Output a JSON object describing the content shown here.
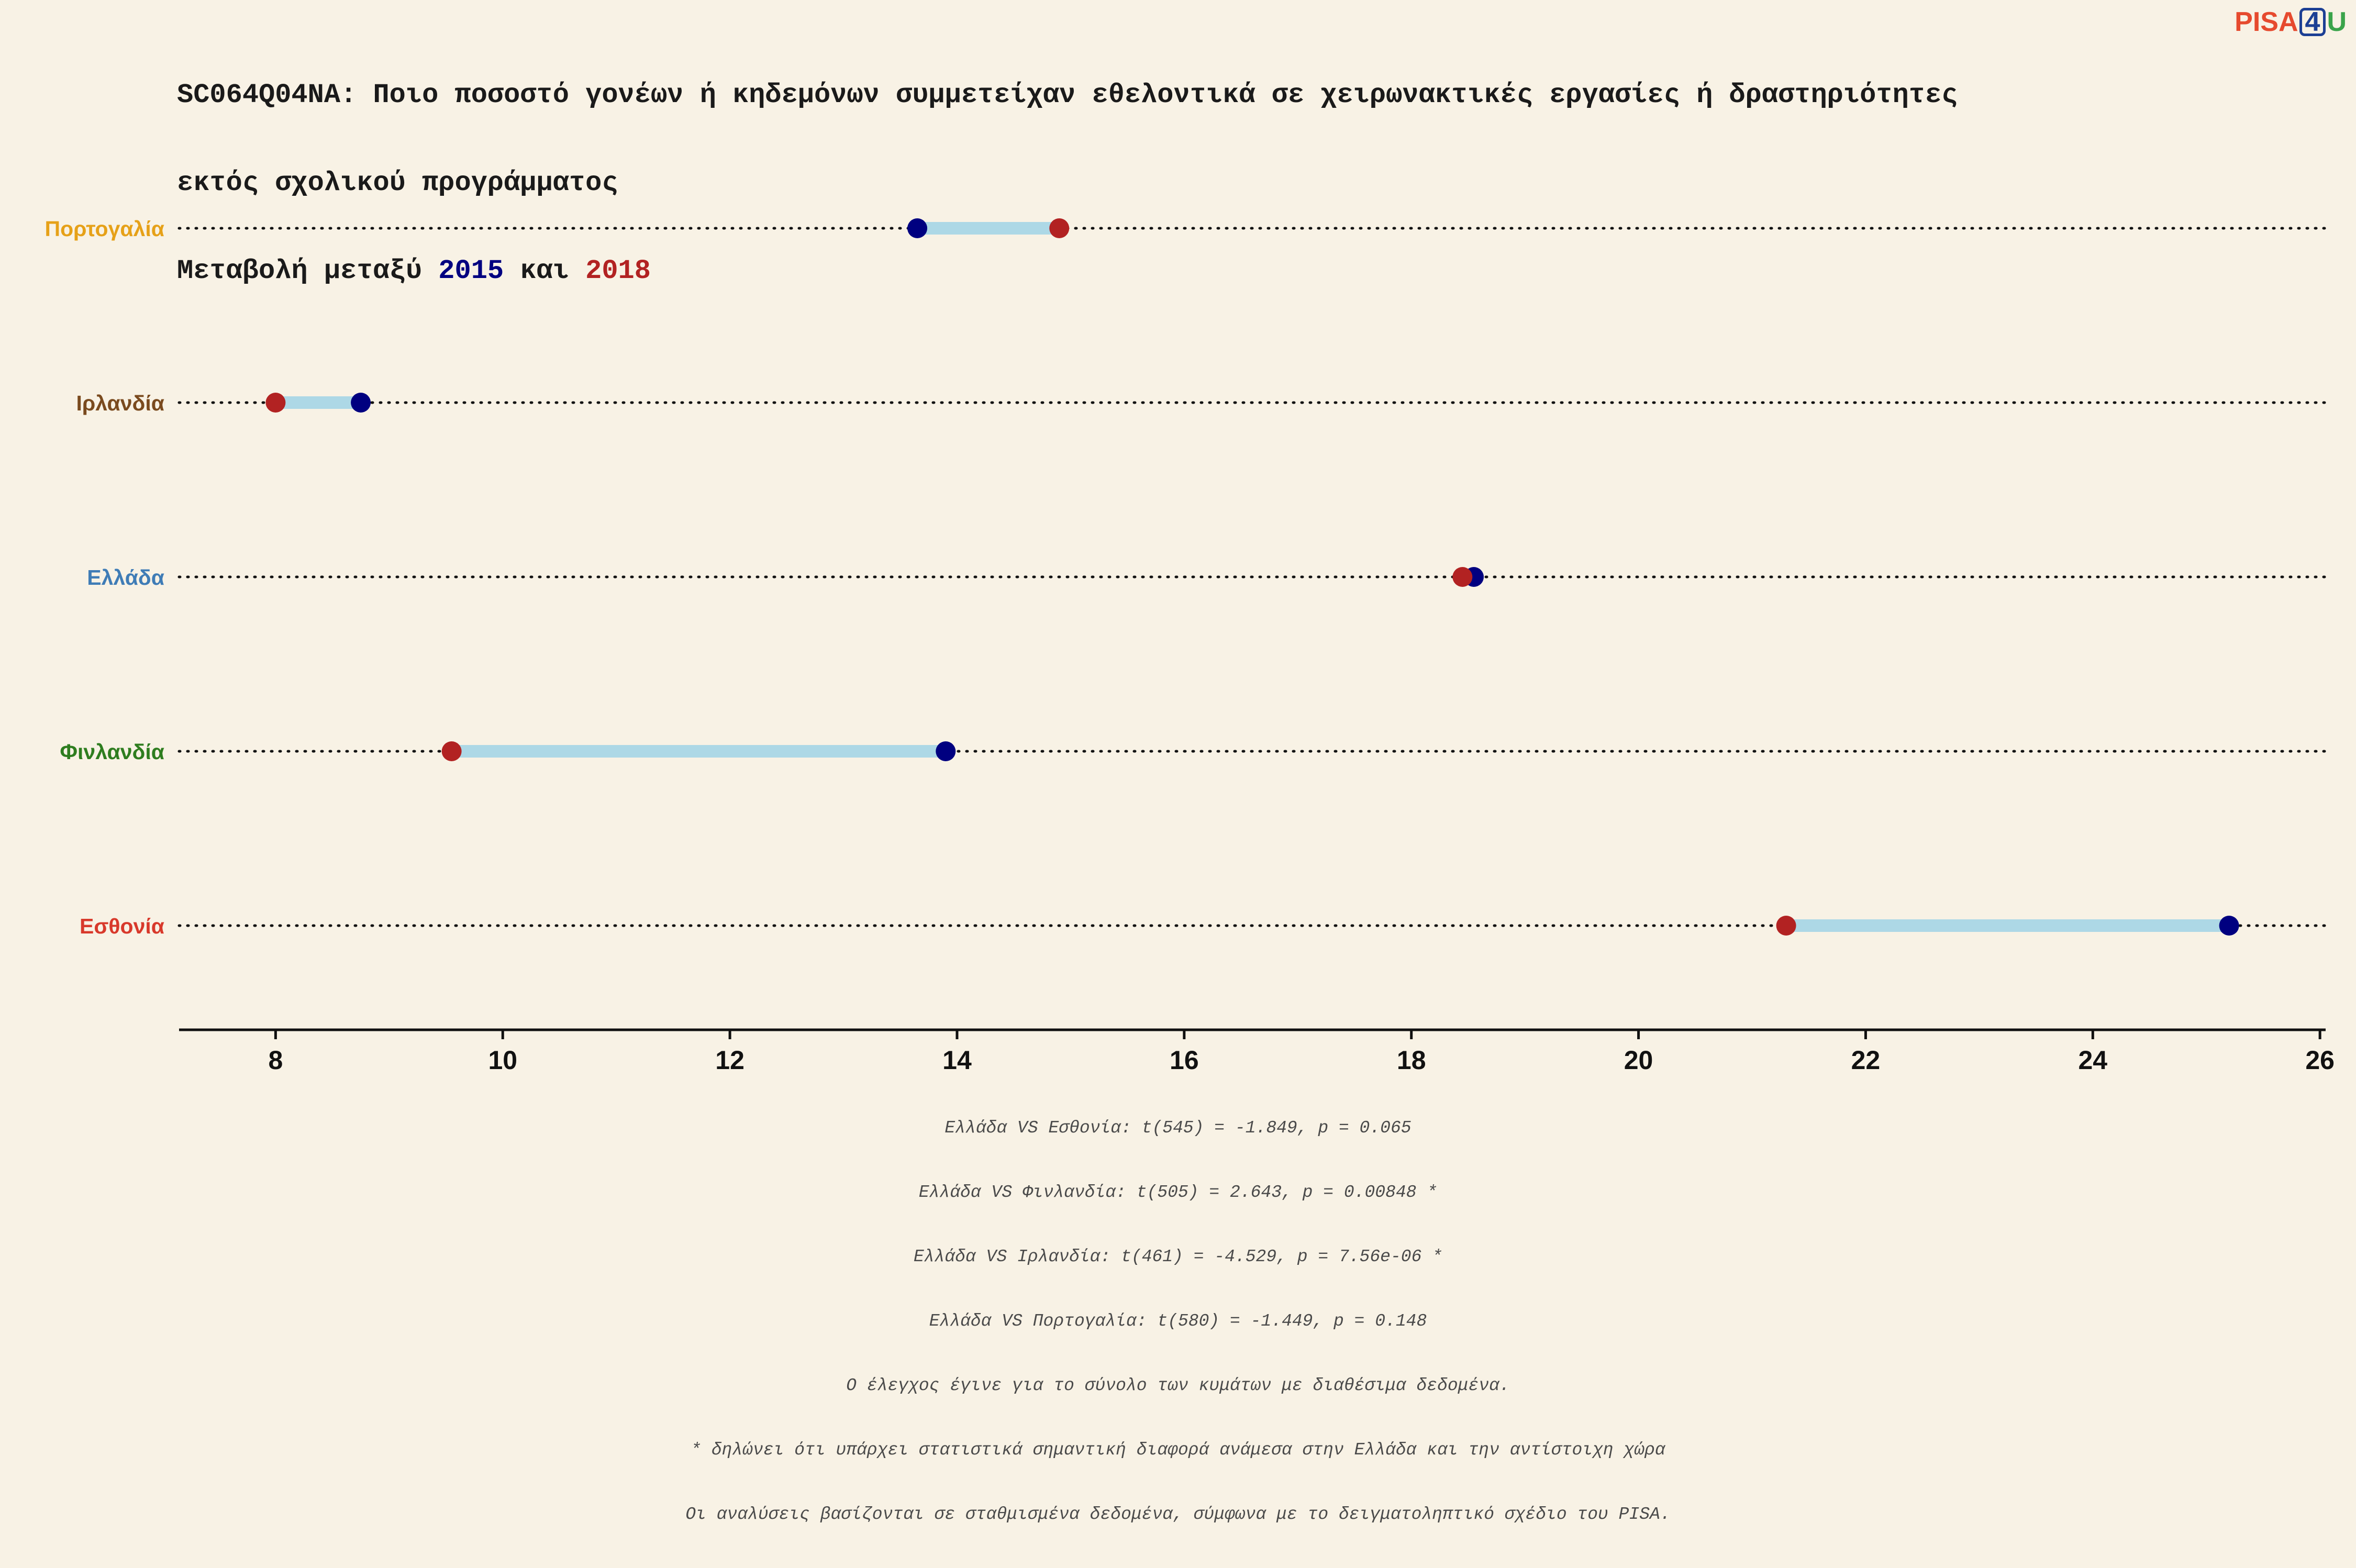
{
  "header": {
    "title_line1": "SC064Q04NA: Ποιο ποσοστό γονέων ή κηδεμόνων συμμετείχαν εθελοντικά σε χειρωνακτικές εργασίες ή δραστηριότητες",
    "title_line2": "εκτός σχολικού προγράμματος",
    "subtitle_prefix": "Μεταβολή μεταξύ ",
    "subtitle_year1": "2015",
    "subtitle_and": " και ",
    "subtitle_year2": "2018"
  },
  "logo": {
    "part1": "PISA",
    "part2": "4",
    "part3": "U"
  },
  "colors": {
    "year_2015": "#000080",
    "year_2018": "#b22222",
    "connector": "#add8e6",
    "background": "#f8f2e5",
    "logo_pisa": "#e64a2e",
    "logo_4": "#1c3f94",
    "logo_u": "#3aa34a"
  },
  "chart_data": {
    "type": "dumbbell",
    "xlim": [
      7.15,
      26.05
    ],
    "x_ticks": [
      8,
      10,
      12,
      14,
      16,
      18,
      20,
      22,
      24,
      26
    ],
    "grid": false,
    "series_years": [
      "2015",
      "2018"
    ],
    "countries": [
      {
        "name": "Πορτογαλία",
        "label_color": "#e6a118",
        "v2015": 13.65,
        "v2018": 14.9
      },
      {
        "name": "Ιρλανδία",
        "label_color": "#7a4a1e",
        "v2015": 8.75,
        "v2018": 8.0
      },
      {
        "name": "Ελλάδα",
        "label_color": "#3f7cb6",
        "v2015": 18.55,
        "v2018": 18.45
      },
      {
        "name": "Φινλανδία",
        "label_color": "#2e7d1f",
        "v2015": 13.9,
        "v2018": 9.55
      },
      {
        "name": "Εσθονία",
        "label_color": "#d8392b",
        "v2015": 25.2,
        "v2018": 21.3
      }
    ]
  },
  "footnotes": [
    "Ελλάδα VS Εσθονία: t(545) = -1.849, p = 0.065",
    "Ελλάδα VS Φινλανδία: t(505) = 2.643, p = 0.00848 *",
    "Ελλάδα VS Ιρλανδία: t(461) = -4.529, p = 7.56e-06 *",
    "Ελλάδα VS Πορτογαλία: t(580) = -1.449, p = 0.148",
    "Ο έλεγχος έγινε για το σύνολο των κυμάτων με διαθέσιμα δεδομένα.",
    "* δηλώνει ότι υπάρχει στατιστικά σημαντική διαφορά ανάμεσα στην Ελλάδα και την αντίστοιχη χώρα",
    "Οι αναλύσεις βασίζονται σε σταθμισμένα δεδομένα, σύμφωνα με το δειγματοληπτικό σχέδιο του PISA."
  ]
}
